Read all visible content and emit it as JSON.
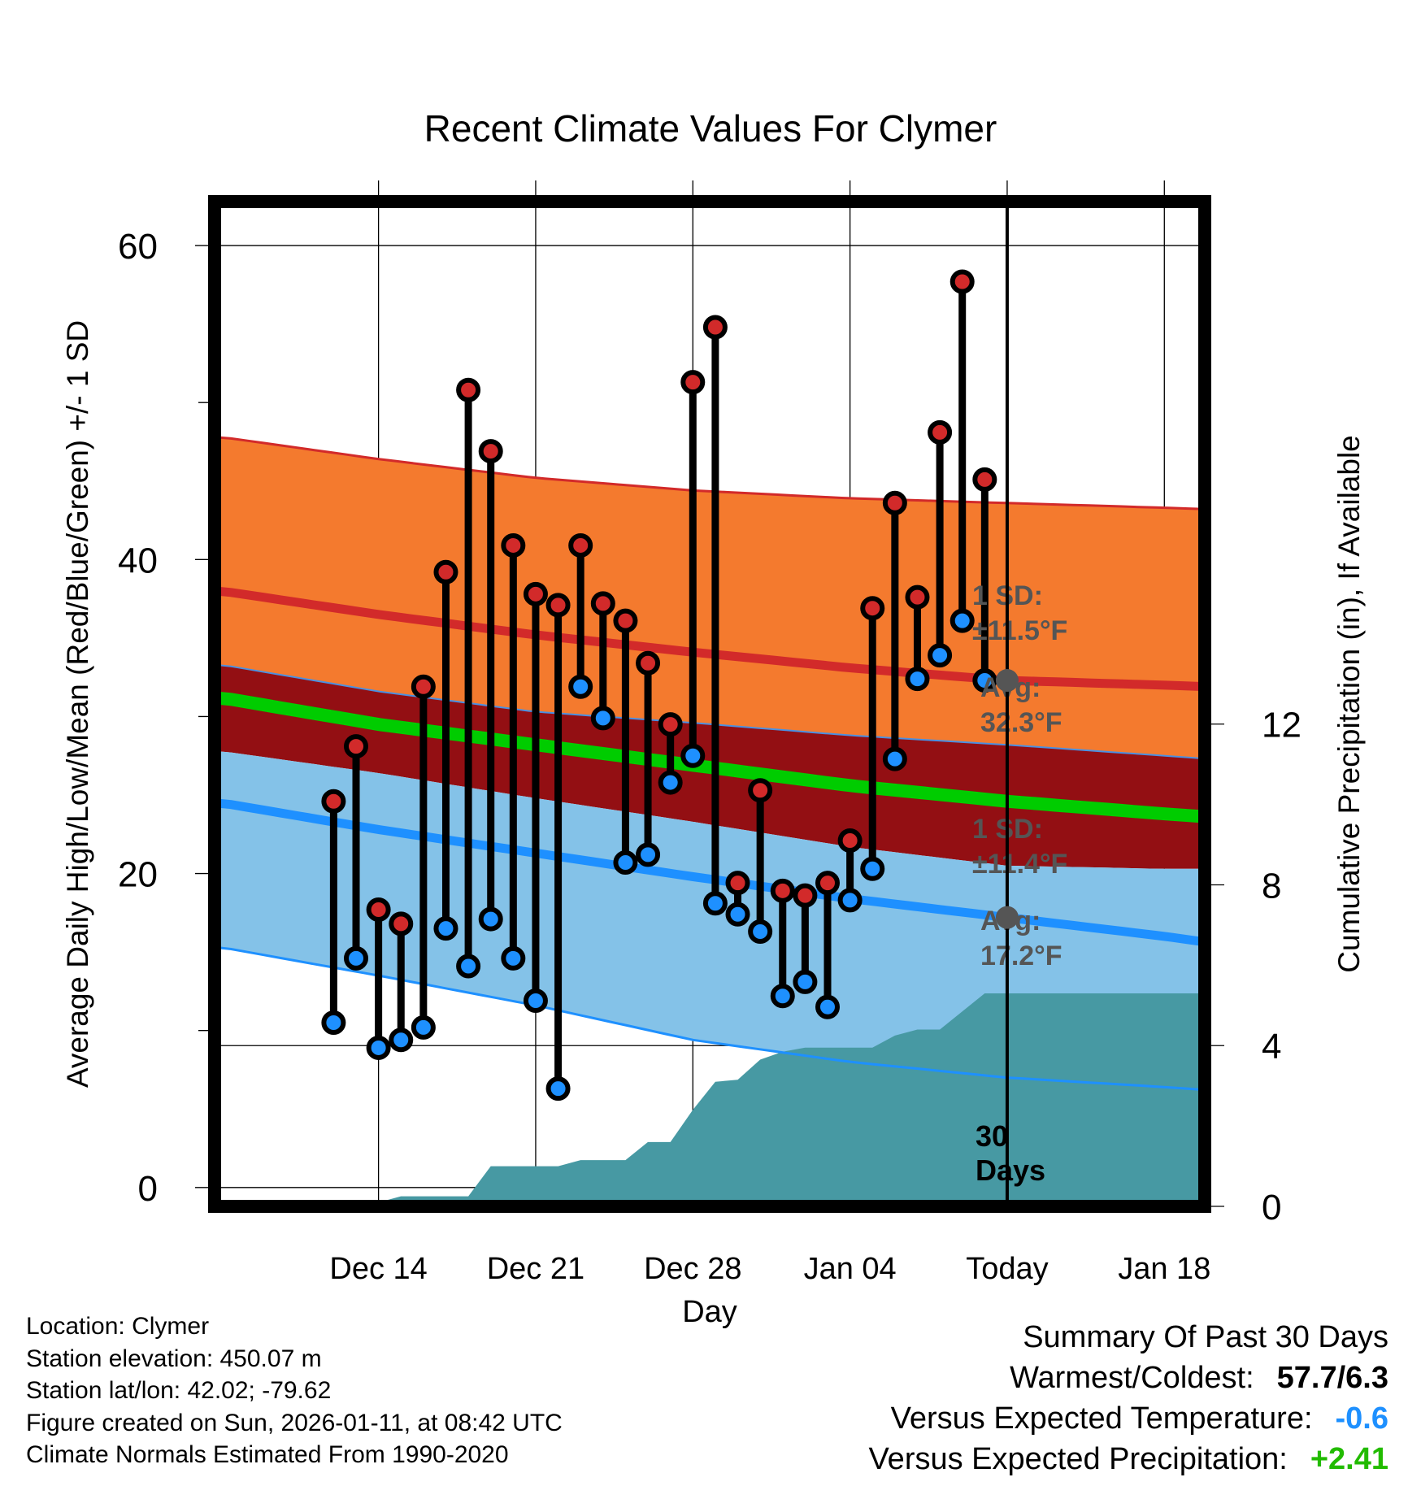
{
  "chart_data": {
    "type": "line",
    "title": "Recent Climate Values For Clymer",
    "xlabel": "Day",
    "ylabel_left": "Average Daily High/Low/Mean (Red/Blue/Green) +/- 1 SD",
    "ylabel_right": "Cumulative Precipitation (in), If Available",
    "ylim_left": [
      -1.2,
      62.8
    ],
    "yticks_left": [
      0,
      20,
      40,
      60
    ],
    "ylim_right": [
      0,
      25
    ],
    "yticks_right": [
      0,
      4,
      8,
      12
    ],
    "xlim_days": [
      -34.3,
      9.8
    ],
    "x_ticks": [
      {
        "day": -27,
        "label": "Dec 14"
      },
      {
        "day": -20,
        "label": "Dec 21"
      },
      {
        "day": -13,
        "label": "Dec 28"
      },
      {
        "day": -6,
        "label": "Jan 04"
      },
      {
        "day": 1,
        "label": "Today"
      },
      {
        "day": 8,
        "label": "Jan 18"
      }
    ],
    "today_day": 1,
    "today_label_lines": [
      "30",
      "Days"
    ],
    "daily": {
      "day": [
        -29,
        -28,
        -27,
        -26,
        -25,
        -24,
        -23,
        -22,
        -21,
        -20,
        -19,
        -18,
        -17,
        -16,
        -15,
        -14,
        -13,
        -12,
        -11,
        -10,
        -9,
        -8,
        -7,
        -6,
        -5,
        -4,
        -3,
        -2,
        -1,
        0
      ],
      "high": [
        24.6,
        28.1,
        17.7,
        16.8,
        31.9,
        39.2,
        50.8,
        46.9,
        40.9,
        37.8,
        37.1,
        40.9,
        37.2,
        36.1,
        33.4,
        29.5,
        51.3,
        54.8,
        19.4,
        25.3,
        18.9,
        18.6,
        19.4,
        22.1,
        36.9,
        43.6,
        37.6,
        48.1,
        57.7,
        45.1
      ],
      "low": [
        10.5,
        14.6,
        8.9,
        9.4,
        10.2,
        16.5,
        14.1,
        17.1,
        14.6,
        11.9,
        6.3,
        31.9,
        29.9,
        20.7,
        21.2,
        25.8,
        27.5,
        18.1,
        17.4,
        16.3,
        12.2,
        13.1,
        11.5,
        18.3,
        20.3,
        27.3,
        32.4,
        33.9,
        36.1,
        32.3
      ]
    },
    "normals": {
      "day": [
        -34,
        -27,
        -20,
        -13,
        -6,
        1,
        8,
        10
      ],
      "high_mean": [
        38.0,
        36.5,
        35.2,
        34.1,
        33.1,
        32.3,
        32.0,
        31.9
      ],
      "high_plus_sd": [
        47.8,
        46.4,
        45.2,
        44.4,
        43.9,
        43.6,
        43.3,
        43.2
      ],
      "high_minus_sd": [
        33.3,
        31.6,
        30.3,
        29.6,
        28.8,
        28.2,
        27.5,
        27.3
      ],
      "mean": [
        31.2,
        29.5,
        28.2,
        26.9,
        25.6,
        24.6,
        23.8,
        23.6
      ],
      "low_mean": [
        24.5,
        22.8,
        21.3,
        19.8,
        18.4,
        17.2,
        16.0,
        15.6
      ],
      "low_plus_sd": [
        27.8,
        26.4,
        24.8,
        23.3,
        21.7,
        20.5,
        20.3,
        20.3
      ],
      "low_minus_sd": [
        15.3,
        13.5,
        11.6,
        9.4,
        8.0,
        7.0,
        6.4,
        6.2
      ],
      "high_sd_label": "1 SD:",
      "high_sd_value": "±11.5°F",
      "high_avg_label": "Avg:",
      "high_avg_value": "32.3°F",
      "low_sd_label": "1 SD:",
      "low_sd_value": "±11.4°F",
      "low_avg_label": "Avg:",
      "low_avg_value": "17.2°F"
    },
    "precipitation": {
      "day": [
        -29.3,
        -28,
        -27,
        -26,
        -25,
        -24,
        -23,
        -22,
        -21,
        -20,
        -19,
        -18,
        -17,
        -16,
        -15,
        -14,
        -13,
        -12,
        -11,
        -10,
        -9,
        -8,
        -7,
        -6,
        -5,
        -4,
        -3,
        -2,
        -1,
        0,
        9.8
      ],
      "cum_in": [
        0,
        0,
        0.1,
        0.25,
        0.25,
        0.25,
        0.25,
        1.0,
        1.0,
        1.0,
        1.0,
        1.15,
        1.15,
        1.15,
        1.6,
        1.6,
        2.4,
        3.1,
        3.15,
        3.65,
        3.85,
        3.95,
        3.95,
        3.95,
        3.95,
        4.25,
        4.4,
        4.4,
        4.85,
        5.3,
        5.3
      ]
    },
    "colors": {
      "high_band": "#f47a2e",
      "mid_band": "#930f13",
      "low_band": "#84c2e8",
      "precip": "#4799a3",
      "high_line": "#d22a2a",
      "mean_line": "#00cc00",
      "low_line": "#1e90ff",
      "high_marker": "#d22a2a",
      "low_marker": "#1e90ff"
    }
  },
  "footer": {
    "location": "Location: Clymer",
    "elevation": "Station elevation: 450.07 m",
    "latlon": "Station lat/lon: 42.02; -79.62",
    "created": "Figure created on Sun, 2026-01-11, at 08:42 UTC",
    "normals": "Climate Normals Estimated From 1990-2020"
  },
  "summary": {
    "title": "Summary Of Past 30 Days",
    "warmest_label": "Warmest/Coldest:",
    "warmest_value": "57.7/6.3",
    "temp_label": "Versus Expected Temperature:",
    "temp_value": "-0.6",
    "temp_color": "#1e90ff",
    "precip_label": "Versus Expected Precipitation:",
    "precip_value": "+2.41",
    "precip_color": "#22bb00"
  }
}
